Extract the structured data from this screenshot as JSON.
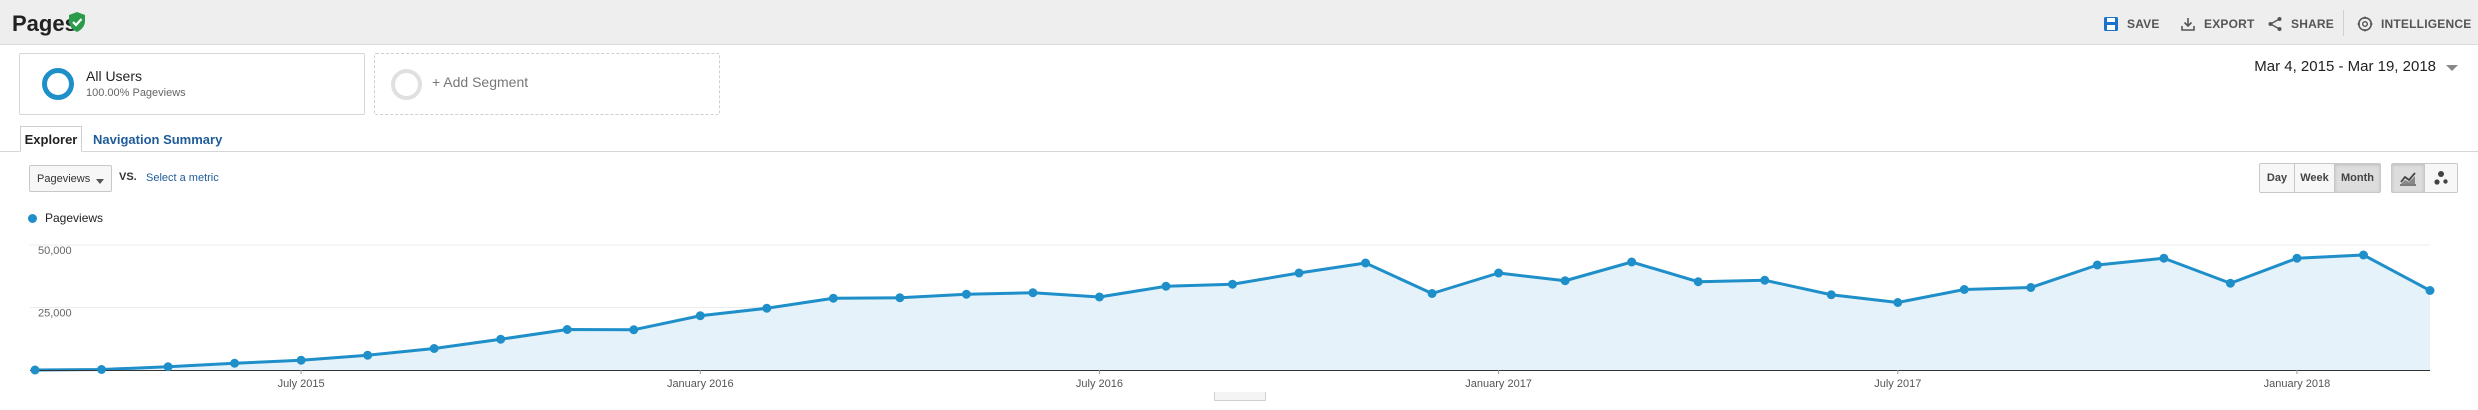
{
  "header": {
    "title": "Pages",
    "actions": {
      "save": "SAVE",
      "export": "EXPORT",
      "share": "SHARE",
      "intelligence": "INTELLIGENCE"
    }
  },
  "segments": {
    "all_users": {
      "name": "All Users",
      "sub": "100.00% Pageviews"
    },
    "add": "+ Add Segment"
  },
  "date_range": "Mar 4, 2015 - Mar 19, 2018",
  "tabs": {
    "explorer": "Explorer",
    "navigation_summary": "Navigation Summary"
  },
  "controls": {
    "metric": "Pageviews",
    "vs": "VS.",
    "select_metric": "Select a metric",
    "periods": [
      "Day",
      "Week",
      "Month"
    ],
    "active_period": "Month"
  },
  "colors": {
    "accent": "#1f8fc9",
    "area_fill": "#e6f2f9",
    "link": "#1f5c99",
    "check": "#2a9a4b"
  },
  "chart_data": {
    "type": "area",
    "series": [
      {
        "name": "Pageviews",
        "values": [
          0,
          200,
          1300,
          2700,
          3900,
          5900,
          8600,
          12300,
          16200,
          16100,
          21700,
          24700,
          28700,
          28900,
          30300,
          30900,
          29200,
          33500,
          34300,
          38800,
          42800,
          30600,
          38800,
          35700,
          43200,
          35300,
          35900,
          30100,
          27000,
          32200,
          33000,
          42000,
          44700,
          34700,
          44700,
          46000,
          31800
        ]
      }
    ],
    "x_range": [
      "2015-03",
      "2018-03"
    ],
    "x_ticks": [
      "July 2015",
      "January 2016",
      "July 2016",
      "January 2017",
      "July 2017",
      "January 2018"
    ],
    "x_tick_index": [
      4,
      10,
      16,
      22,
      28,
      34
    ],
    "y_ticks": [
      "25,000",
      "50,000"
    ],
    "y_tick_values": [
      25000,
      50000
    ],
    "ylim": [
      0,
      50000
    ],
    "grid": true,
    "legend": "top-left"
  }
}
